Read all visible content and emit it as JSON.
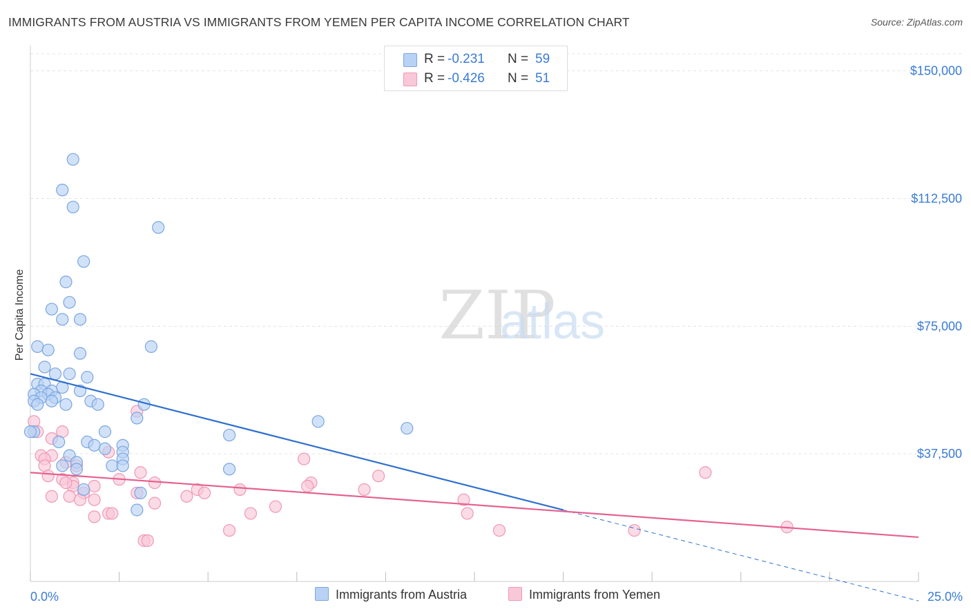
{
  "title": "IMMIGRANTS FROM AUSTRIA VS IMMIGRANTS FROM YEMEN PER CAPITA INCOME CORRELATION CHART",
  "source": "Source: ZipAtlas.com",
  "watermark": {
    "zip": "ZIP",
    "atlas": "atlas"
  },
  "colors": {
    "austria_fill": "#b8d2f5",
    "austria_stroke": "#7aa5e0",
    "austria_line": "#2e6fce",
    "yemen_fill": "#f9c8d8",
    "yemen_stroke": "#ef97b4",
    "yemen_line": "#e5608f",
    "axis_label": "#3a7bd5",
    "grid": "#e3e3e3"
  },
  "legend": {
    "rows": [
      {
        "r_label": "R =",
        "r_value": "-0.231",
        "n_label": "N =",
        "n_value": "59"
      },
      {
        "r_label": "R =",
        "r_value": "-0.426",
        "n_label": "N =",
        "n_value": "51"
      }
    ]
  },
  "bottom_legend": {
    "austria": "Immigrants from Austria",
    "yemen": "Immigrants from Yemen"
  },
  "chart_data": {
    "type": "scatter",
    "ylabel": "Per Capita Income",
    "xlim": [
      0,
      25
    ],
    "ylim": [
      0,
      155000
    ],
    "x_tick_labels": {
      "min": "0.0%",
      "max": "25.0%"
    },
    "y_ticks": [
      {
        "value": 37500,
        "label": "$37,500"
      },
      {
        "value": 75000,
        "label": "$75,000"
      },
      {
        "value": 112500,
        "label": "$112,500"
      },
      {
        "value": 150000,
        "label": "$150,000"
      }
    ],
    "series": [
      {
        "name": "Immigrants from Austria",
        "trend": {
          "x0": 0,
          "y0": 61000,
          "x1": 15,
          "y1": 21000,
          "dash_to_x": 25,
          "dash_to_y": -5700
        },
        "points": [
          [
            1.2,
            124000
          ],
          [
            0.9,
            115000
          ],
          [
            1.2,
            110000
          ],
          [
            3.6,
            104000
          ],
          [
            1.5,
            94000
          ],
          [
            1.0,
            88000
          ],
          [
            1.1,
            82000
          ],
          [
            0.6,
            80000
          ],
          [
            0.9,
            77000
          ],
          [
            1.4,
            77000
          ],
          [
            0.2,
            69000
          ],
          [
            0.5,
            68000
          ],
          [
            1.4,
            67000
          ],
          [
            3.4,
            69000
          ],
          [
            0.4,
            63000
          ],
          [
            0.7,
            61000
          ],
          [
            1.1,
            61000
          ],
          [
            1.6,
            60000
          ],
          [
            0.2,
            58000
          ],
          [
            0.4,
            58000
          ],
          [
            0.6,
            56000
          ],
          [
            0.9,
            57000
          ],
          [
            0.3,
            56000
          ],
          [
            1.4,
            56000
          ],
          [
            0.1,
            55000
          ],
          [
            0.5,
            55000
          ],
          [
            0.3,
            54000
          ],
          [
            0.7,
            54000
          ],
          [
            0.1,
            53000
          ],
          [
            0.6,
            53000
          ],
          [
            1.7,
            53000
          ],
          [
            0.2,
            52000
          ],
          [
            1.0,
            52000
          ],
          [
            1.9,
            52000
          ],
          [
            3.2,
            52000
          ],
          [
            3.0,
            48000
          ],
          [
            8.1,
            47000
          ],
          [
            10.6,
            45000
          ],
          [
            2.1,
            44000
          ],
          [
            0.1,
            44000
          ],
          [
            5.6,
            43000
          ],
          [
            0.8,
            41000
          ],
          [
            1.6,
            41000
          ],
          [
            1.8,
            40000
          ],
          [
            2.6,
            40000
          ],
          [
            2.1,
            39000
          ],
          [
            2.6,
            38000
          ],
          [
            1.1,
            37000
          ],
          [
            2.6,
            36000
          ],
          [
            1.3,
            35000
          ],
          [
            0.9,
            34000
          ],
          [
            2.3,
            34000
          ],
          [
            2.6,
            34000
          ],
          [
            1.3,
            33000
          ],
          [
            5.6,
            33000
          ],
          [
            1.5,
            27000
          ],
          [
            3.1,
            26000
          ],
          [
            3.0,
            21000
          ],
          [
            0.0,
            44000
          ]
        ]
      },
      {
        "name": "Immigrants from Yemen",
        "trend": {
          "x0": 0,
          "y0": 32000,
          "x1": 25,
          "y1": 13000
        },
        "points": [
          [
            0.1,
            47000
          ],
          [
            0.9,
            44000
          ],
          [
            0.6,
            42000
          ],
          [
            3.0,
            50000
          ],
          [
            2.2,
            38000
          ],
          [
            0.3,
            37000
          ],
          [
            0.6,
            37000
          ],
          [
            1.3,
            34000
          ],
          [
            1.0,
            35000
          ],
          [
            0.4,
            36000
          ],
          [
            0.4,
            34000
          ],
          [
            7.7,
            36000
          ],
          [
            9.8,
            31000
          ],
          [
            3.5,
            29000
          ],
          [
            0.9,
            30000
          ],
          [
            1.2,
            29000
          ],
          [
            1.2,
            28000
          ],
          [
            1.8,
            28000
          ],
          [
            7.9,
            29000
          ],
          [
            7.8,
            28000
          ],
          [
            4.7,
            27000
          ],
          [
            5.9,
            27000
          ],
          [
            9.4,
            27000
          ],
          [
            3.0,
            26000
          ],
          [
            4.9,
            26000
          ],
          [
            1.5,
            26000
          ],
          [
            1.1,
            25000
          ],
          [
            0.6,
            25000
          ],
          [
            1.8,
            24000
          ],
          [
            4.4,
            25000
          ],
          [
            3.5,
            23000
          ],
          [
            6.9,
            22000
          ],
          [
            12.2,
            24000
          ],
          [
            2.2,
            20000
          ],
          [
            2.3,
            20000
          ],
          [
            1.8,
            19000
          ],
          [
            6.2,
            20000
          ],
          [
            12.3,
            20000
          ],
          [
            5.6,
            15000
          ],
          [
            13.2,
            15000
          ],
          [
            17.0,
            15000
          ],
          [
            21.3,
            16000
          ],
          [
            3.2,
            12000
          ],
          [
            3.3,
            12000
          ],
          [
            19.0,
            32000
          ],
          [
            1.4,
            24000
          ],
          [
            0.2,
            44000
          ],
          [
            2.5,
            30000
          ],
          [
            1.0,
            29000
          ],
          [
            0.5,
            31000
          ],
          [
            3.1,
            32000
          ]
        ]
      }
    ]
  }
}
